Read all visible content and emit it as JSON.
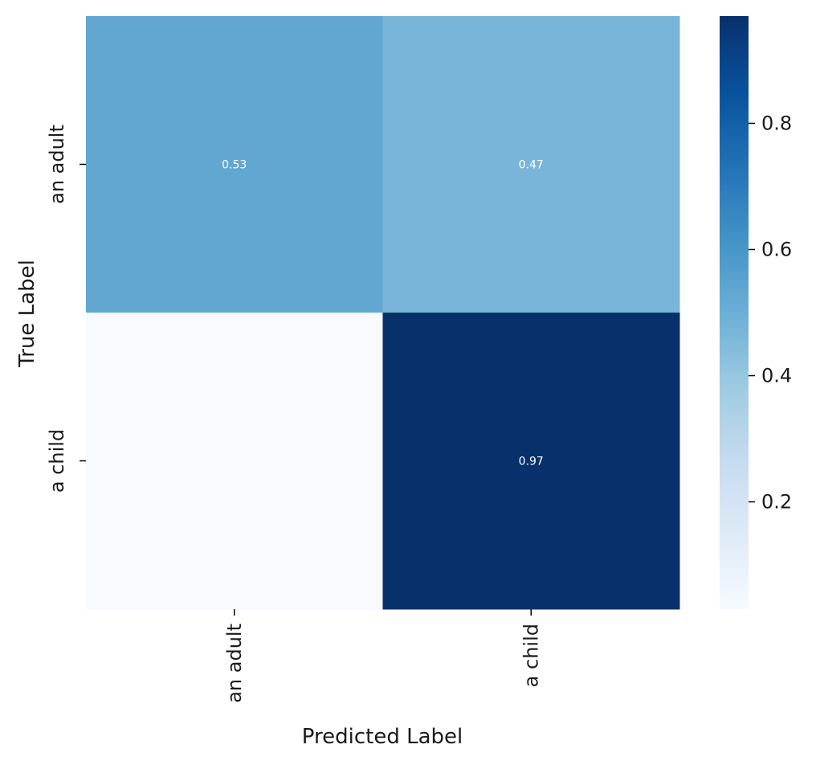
{
  "chart_data": {
    "type": "heatmap",
    "title": "",
    "xlabel": "Predicted Label",
    "ylabel": "True Label",
    "x_categories": [
      "an adult",
      "a child"
    ],
    "y_categories": [
      "an adult",
      "a child"
    ],
    "values": [
      [
        0.53,
        0.47
      ],
      [
        0.03,
        0.97
      ]
    ],
    "annotations": [
      [
        "0.53",
        "0.47"
      ],
      [
        "",
        "0.97"
      ]
    ],
    "colormap": "Blues",
    "colorbar": {
      "range": [
        0.03,
        0.97
      ],
      "ticks": [
        0.2,
        0.4,
        0.6,
        0.8
      ],
      "tick_labels": [
        "0.2",
        "0.4",
        "0.6",
        "0.8"
      ]
    }
  }
}
